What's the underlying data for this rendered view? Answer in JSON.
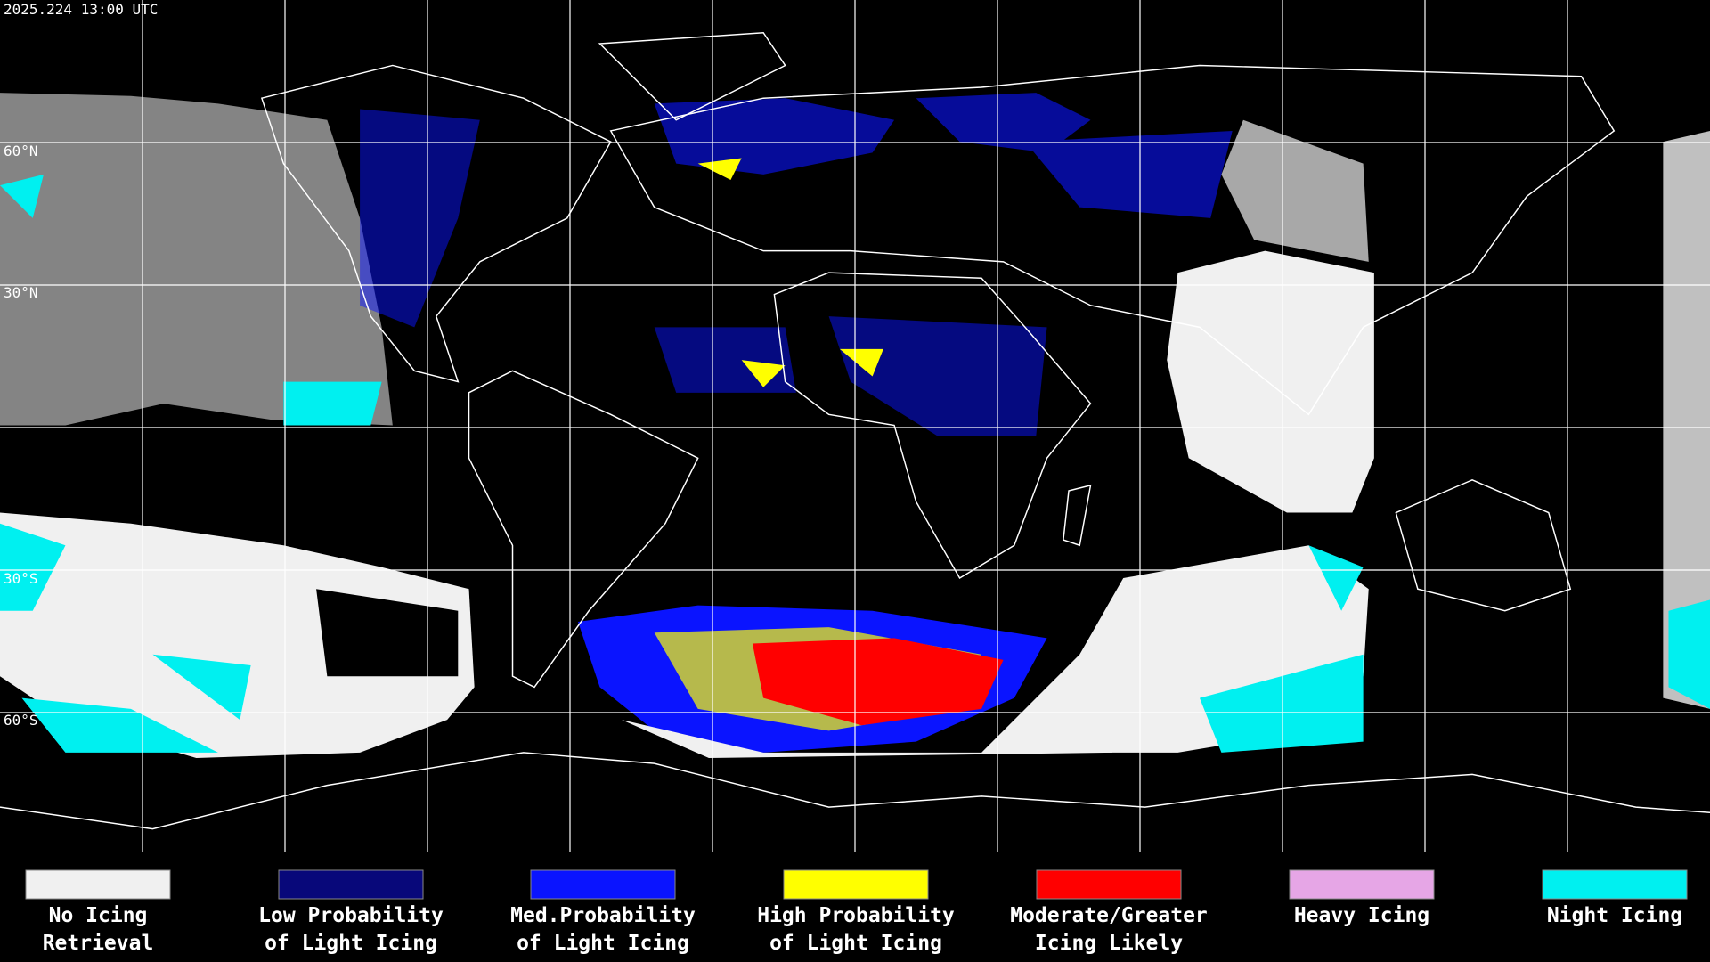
{
  "header": {
    "timestamp": "2025.224 13:00 UTC"
  },
  "map": {
    "latitude_labels": [
      "60°N",
      "30°N",
      "30°S",
      "60°S"
    ]
  },
  "legend": {
    "items": [
      {
        "label": [
          "No Icing",
          "Retrieval"
        ],
        "color": "#f0f0f0"
      },
      {
        "label": [
          "Low Probability",
          "of Light Icing"
        ],
        "color": "#08087a"
      },
      {
        "label": [
          "Med.Probability",
          "of Light Icing"
        ],
        "color": "#0a14ff"
      },
      {
        "label": [
          "High Probability",
          "of Light Icing"
        ],
        "color": "#ffff00"
      },
      {
        "label": [
          "Moderate/Greater",
          "Icing Likely"
        ],
        "color": "#ff0000"
      },
      {
        "label": [
          "Heavy Icing"
        ],
        "color": "#e6a6e6"
      },
      {
        "label": [
          "Night Icing"
        ],
        "color": "#00f0f0"
      }
    ]
  }
}
